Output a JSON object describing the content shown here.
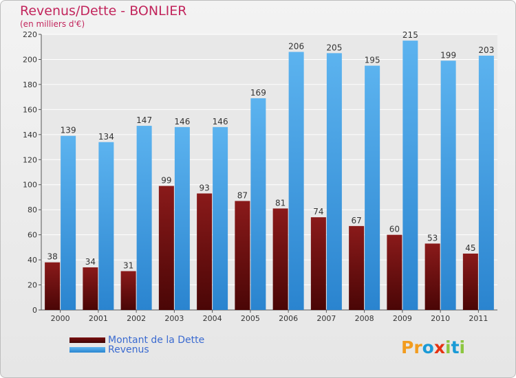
{
  "title": "Revenus/Dette - BONLIER",
  "subtitle": "(en milliers d'€)",
  "chart_data": {
    "type": "bar",
    "categories": [
      "2000",
      "2001",
      "2002",
      "2003",
      "2004",
      "2005",
      "2006",
      "2007",
      "2008",
      "2009",
      "2010",
      "2011"
    ],
    "series": [
      {
        "name": "Montant de la Dette",
        "values": [
          38,
          34,
          31,
          99,
          93,
          87,
          81,
          74,
          67,
          60,
          53,
          45
        ],
        "color": "#7a1010"
      },
      {
        "name": "Revenus",
        "values": [
          139,
          134,
          147,
          146,
          146,
          169,
          206,
          205,
          195,
          215,
          199,
          203
        ],
        "color": "#4aa3e8"
      }
    ],
    "ylim": [
      0,
      220
    ],
    "yticks": [
      0,
      20,
      40,
      60,
      80,
      100,
      120,
      140,
      160,
      180,
      200,
      220
    ],
    "grid": true,
    "legend_position": "bottom-left"
  },
  "logo": {
    "text": "Proxiti",
    "colors": [
      "#f29c1f",
      "#f29c1f",
      "#1a9ad6",
      "#e63312",
      "#8cc63f",
      "#1a9ad6",
      "#8cc63f"
    ]
  },
  "colors": {
    "title": "#c2255c",
    "legend_text": "#3a6ad0",
    "grid": "#ffffff",
    "background": "#e6e6e6"
  }
}
